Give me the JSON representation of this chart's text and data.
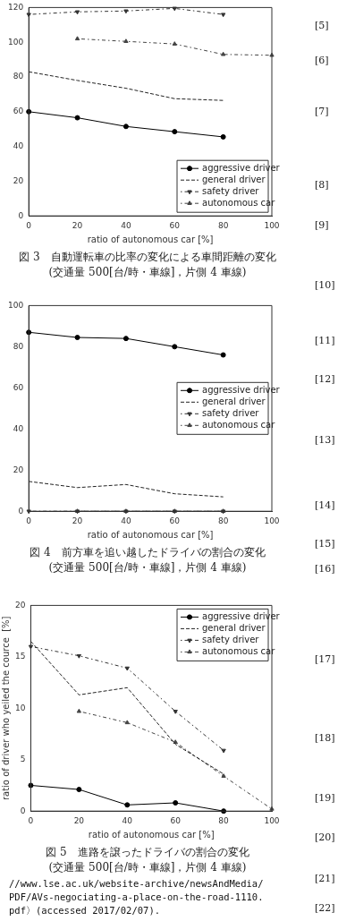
{
  "chart_data": [
    {
      "type": "line",
      "title": "図 3　自動運転車の比率の変化による車間距離の変化",
      "subtitle": "(交通量 500[台/時・車線]，片側 4 車線)",
      "xlabel": "ratio of autonomous car [%]",
      "xlim": [
        0,
        100
      ],
      "xticks": [
        0,
        20,
        40,
        60,
        80,
        100
      ],
      "ylim": [
        0,
        120
      ],
      "yticks": [
        0,
        20,
        40,
        60,
        80,
        100,
        120
      ],
      "legend": "bottom right",
      "grid": false,
      "series": [
        {
          "name": "aggressive driver",
          "color": "#000000",
          "marker": "circle",
          "line_style": "solid",
          "x": [
            0,
            20,
            40,
            60,
            80
          ],
          "values": [
            60,
            56.5,
            51.5,
            48.5,
            45.5
          ]
        },
        {
          "name": "general driver",
          "color": "#222222",
          "marker": "none",
          "line_style": "dashed",
          "x": [
            0,
            20,
            40,
            60,
            80
          ],
          "values": [
            83,
            78,
            73.5,
            67.5,
            66.5
          ]
        },
        {
          "name": "safety driver",
          "color": "#333333",
          "marker": "triangle_down",
          "line_style": "dotted",
          "x": [
            0,
            20,
            40,
            60,
            80
          ],
          "values": [
            116,
            117.5,
            118,
            119.5,
            116
          ]
        },
        {
          "name": "autonomous car",
          "color": "#444444",
          "marker": "triangle",
          "line_style": "dotted",
          "x": [
            20,
            40,
            60,
            80,
            100
          ],
          "values": [
            102,
            100.5,
            99,
            93,
            92.5
          ]
        }
      ]
    },
    {
      "type": "line",
      "title": "図 4　前方車を追い越したドライバの割合の変化",
      "subtitle": "(交通量 500[台/時・車線]，片側 4 車線)",
      "xlabel": "ratio of autonomous car [%]",
      "xlim": [
        0,
        100
      ],
      "xticks": [
        0,
        20,
        40,
        60,
        80,
        100
      ],
      "ylim": [
        0,
        100
      ],
      "yticks": [
        0,
        20,
        40,
        60,
        80,
        100
      ],
      "legend": "right",
      "grid": false,
      "series": [
        {
          "name": "aggressive driver",
          "color": "#000000",
          "marker": "circle",
          "line_style": "solid",
          "x": [
            0,
            20,
            40,
            60,
            80
          ],
          "values": [
            87,
            84.5,
            84,
            80,
            76
          ]
        },
        {
          "name": "general driver",
          "color": "#222222",
          "marker": "none",
          "line_style": "dashed",
          "x": [
            0,
            20,
            40,
            60,
            80
          ],
          "values": [
            14.5,
            11.5,
            13,
            8.5,
            7
          ]
        },
        {
          "name": "safety driver",
          "color": "#333333",
          "marker": "triangle_down",
          "line_style": "dotted",
          "x": [
            0,
            20,
            40,
            60,
            80
          ],
          "values": [
            0,
            0,
            0,
            0,
            0
          ]
        },
        {
          "name": "autonomous car",
          "color": "#444444",
          "marker": "triangle",
          "line_style": "dotted",
          "x": [
            20,
            40,
            60,
            80
          ],
          "values": [
            0,
            0,
            0,
            0
          ]
        }
      ]
    },
    {
      "type": "line",
      "title": "図 5　進路を譲ったドライバの割合の変化",
      "subtitle": "(交通量 500[台/時・車線]，片側 4 車線)",
      "xlabel": "ratio of autonomous car [%]",
      "ylabel": "ratio of driver who yeiled the cource  [%]",
      "xlim": [
        0,
        100
      ],
      "xticks": [
        0,
        20,
        40,
        60,
        80,
        100
      ],
      "ylim": [
        0,
        20
      ],
      "yticks": [
        0,
        5,
        10,
        15,
        20
      ],
      "legend": "top right",
      "grid": false,
      "annotations": [
        "//www.lse.ac.uk/website-archive/newsAndMedia/ PDF/AVs-negociating-a-place-on-the-road-1110. pdf〉(accessed 2017/02/07)."
      ],
      "series": [
        {
          "name": "aggressive driver",
          "color": "#000000",
          "marker": "circle",
          "line_style": "solid",
          "x": [
            0,
            20,
            40,
            60,
            80
          ],
          "values": [
            2.5,
            2.1,
            0.6,
            0.8,
            0
          ]
        },
        {
          "name": "general driver",
          "color": "#222222",
          "marker": "none",
          "line_style": "dashed",
          "x": [
            0,
            20,
            40,
            60,
            80
          ],
          "values": [
            16.5,
            11.3,
            12,
            6.5,
            3.6
          ]
        },
        {
          "name": "safety driver",
          "color": "#333333",
          "marker": "triangle_down",
          "line_style": "dotted",
          "x": [
            0,
            20,
            40,
            60,
            80
          ],
          "values": [
            16,
            15.1,
            13.9,
            9.7,
            5.9
          ]
        },
        {
          "name": "autonomous car",
          "color": "#444444",
          "marker": "triangle",
          "line_style": "dotted",
          "x": [
            20,
            40,
            60,
            80,
            100
          ],
          "values": [
            9.7,
            8.6,
            6.7,
            3.4,
            0.2
          ]
        }
      ]
    },
    {
      "type": "other",
      "annotations": [
        "[5]",
        "[6]",
        "[7]",
        "[8]",
        "[9]",
        "[10]",
        "[11]",
        "[12]",
        "[13]",
        "[14]",
        "[15]",
        "[16]",
        "[17]",
        "[18]",
        "[19]",
        "[20]",
        "[21]",
        "[22]"
      ]
    }
  ]
}
